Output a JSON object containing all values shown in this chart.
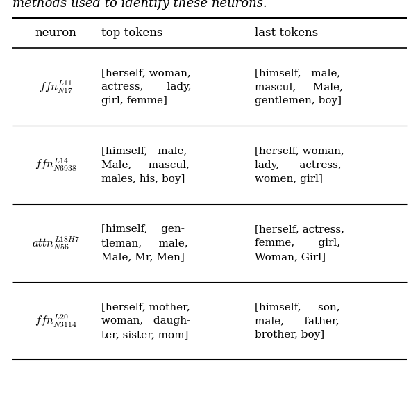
{
  "title_text": "methods used to identify these neurons.",
  "headers": [
    "neuron",
    "top tokens",
    "last tokens"
  ],
  "rows": [
    {
      "neuron_latex": "$ffn_{N17}^{L11}$",
      "top_tokens": "[herself, woman,\nactress,       lady,\ngirl, femme]",
      "last_tokens": "[himself,   male,\nmascul,     Male,\ngentlemen, boy]"
    },
    {
      "neuron_latex": "$ffn_{N6938}^{L14}$",
      "top_tokens": "[himself,   male,\nMale,     mascul,\nmales, his, boy]",
      "last_tokens": "[herself, woman,\nlady,      actress,\nwomen, girl]"
    },
    {
      "neuron_latex": "$attn_{N56}^{L18H7}$",
      "top_tokens": "[himself,    gen-\ntleman,     male,\nMale, Mr, Men]",
      "last_tokens": "[herself, actress,\nfemme,       girl,\nWoman, Girl]"
    },
    {
      "neuron_latex": "$ffn_{N3114}^{L20}$",
      "top_tokens": "[herself, mother,\nwoman,   daugh-\nter, sister, mom]",
      "last_tokens": "[himself,     son,\nmale,      father,\nbrother, boy]"
    }
  ],
  "fig_width": 5.92,
  "fig_height": 5.76,
  "dpi": 100,
  "bg_color": "#ffffff",
  "line_color": "#000000",
  "text_color": "#000000",
  "title_fontsize": 13,
  "header_fontsize": 12,
  "cell_fontsize": 11,
  "neuron_fontsize": 12
}
